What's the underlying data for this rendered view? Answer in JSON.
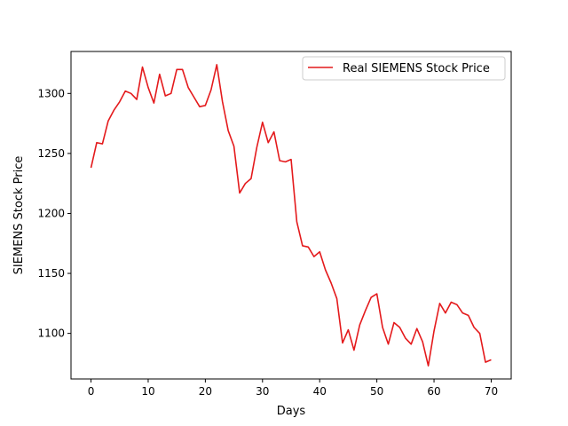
{
  "chart_data": {
    "type": "line",
    "title": "",
    "xlabel": "Days",
    "ylabel": "SIEMENS Stock Price",
    "xlim": [
      -3.5,
      73.5
    ],
    "ylim": [
      1062,
      1335
    ],
    "x_ticks": [
      0,
      10,
      20,
      30,
      40,
      50,
      60,
      70
    ],
    "y_ticks": [
      1100,
      1150,
      1200,
      1250,
      1300
    ],
    "grid": false,
    "legend_position": "top-right",
    "series": [
      {
        "name": "Real SIEMENS Stock Price",
        "color": "#e41a1c",
        "x": [
          0,
          1,
          2,
          3,
          4,
          5,
          6,
          7,
          8,
          9,
          10,
          11,
          12,
          13,
          14,
          15,
          16,
          17,
          18,
          19,
          20,
          21,
          22,
          23,
          24,
          25,
          26,
          27,
          28,
          29,
          30,
          31,
          32,
          33,
          34,
          35,
          36,
          37,
          38,
          39,
          40,
          41,
          42,
          43,
          44,
          45,
          46,
          47,
          48,
          49,
          50,
          51,
          52,
          53,
          54,
          55,
          56,
          57,
          58,
          59,
          60,
          61,
          62,
          63,
          64,
          65,
          66,
          67,
          68,
          69,
          70
        ],
        "values": [
          1238,
          1259,
          1258,
          1277,
          1286,
          1293,
          1302,
          1300,
          1295,
          1322,
          1305,
          1292,
          1316,
          1298,
          1300,
          1320,
          1320,
          1305,
          1297,
          1289,
          1290,
          1303,
          1324,
          1293,
          1269,
          1256,
          1217,
          1225,
          1229,
          1255,
          1276,
          1259,
          1268,
          1244,
          1243,
          1245,
          1193,
          1173,
          1172,
          1164,
          1168,
          1153,
          1142,
          1129,
          1092,
          1103,
          1086,
          1107,
          1119,
          1130,
          1133,
          1105,
          1091,
          1109,
          1105,
          1096,
          1091,
          1104,
          1093,
          1073,
          1102,
          1125,
          1117,
          1126,
          1124,
          1117,
          1115,
          1105,
          1100,
          1076,
          1078
        ]
      }
    ]
  }
}
